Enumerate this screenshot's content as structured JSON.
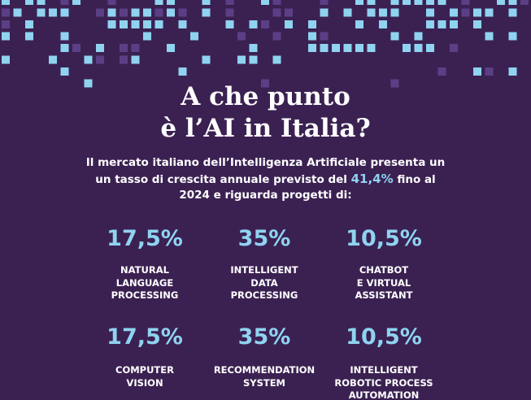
{
  "title": {
    "lines": [
      "A che punto",
      "è  l’AI in Italia?"
    ]
  },
  "intro": {
    "line1": "Il mercato italiano dell’Intelligenza Artificiale presenta un",
    "line2_before": "un tasso di crescita annuale previsto del",
    "highlight": "41,4%",
    "line2_after": "fino al",
    "line3": "2024 e riguarda progetti di:"
  },
  "stats": [
    {
      "value": "17,5%",
      "label": [
        "NATURAL",
        "LANGUAGE",
        "PROCESSING"
      ]
    },
    {
      "value": "35%",
      "label": [
        "INTELLIGENT",
        "DATA",
        "PROCESSING"
      ]
    },
    {
      "value": "10,5%",
      "label": [
        "CHATBOT",
        "E VIRTUAL",
        "ASSISTANT"
      ]
    },
    {
      "value": "17,5%",
      "label": [
        "COMPUTER",
        "VISION"
      ]
    },
    {
      "value": "35%",
      "label": [
        "RECOMMENDATION",
        "SYSTEM"
      ]
    },
    {
      "value": "10,5%",
      "label": [
        "INTELLIGENT",
        "ROBOTIC PROCESS",
        "AUTOMATION"
      ]
    }
  ]
}
